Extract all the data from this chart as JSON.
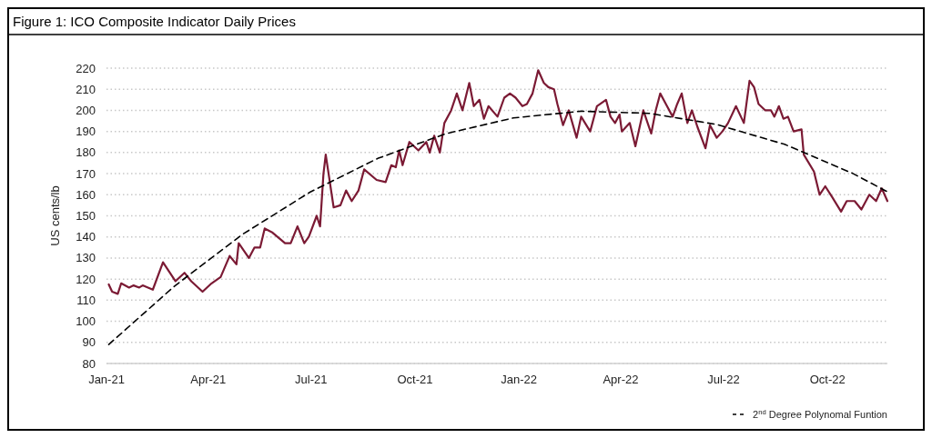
{
  "chart_data": {
    "type": "line",
    "title": "Figure 1: ICO Composite Indicator Daily Prices",
    "ylabel": "US cents/lb",
    "xlim": [
      "2021-01-01",
      "2022-11-23"
    ],
    "xticks": [
      {
        "value": "2021-01-01",
        "label": "Jan-21"
      },
      {
        "value": "2021-04-01",
        "label": "Apr-21"
      },
      {
        "value": "2021-07-01",
        "label": "Jul-21"
      },
      {
        "value": "2021-10-01",
        "label": "Oct-21"
      },
      {
        "value": "2022-01-01",
        "label": "Jan-22"
      },
      {
        "value": "2022-04-01",
        "label": "Apr-22"
      },
      {
        "value": "2022-07-01",
        "label": "Jul-22"
      },
      {
        "value": "2022-10-01",
        "label": "Oct-22"
      }
    ],
    "ylim": [
      80,
      220
    ],
    "yticks": [
      80,
      90,
      100,
      110,
      120,
      130,
      140,
      150,
      160,
      170,
      180,
      190,
      200,
      210,
      220
    ],
    "grid": "y",
    "legend": "bottom right",
    "series": [
      {
        "color": "#7b1a34",
        "line_style": "solid",
        "x": [
          "2021-01-03",
          "2021-01-06",
          "2021-01-11",
          "2021-01-14",
          "2021-01-21",
          "2021-01-25",
          "2021-01-30",
          "2021-02-02",
          "2021-02-11",
          "2021-02-20",
          "2021-03-03",
          "2021-03-11",
          "2021-03-17",
          "2021-03-27",
          "2021-04-04",
          "2021-04-12",
          "2021-04-20",
          "2021-04-26",
          "2021-04-28",
          "2021-05-07",
          "2021-05-12",
          "2021-05-17",
          "2021-05-21",
          "2021-05-28",
          "2021-06-08",
          "2021-06-13",
          "2021-06-19",
          "2021-06-25",
          "2021-06-29",
          "2021-07-06",
          "2021-07-09",
          "2021-07-12",
          "2021-07-14",
          "2021-07-21",
          "2021-07-27",
          "2021-08-01",
          "2021-08-06",
          "2021-08-12",
          "2021-08-17",
          "2021-08-28",
          "2021-09-05",
          "2021-09-10",
          "2021-09-14",
          "2021-09-17",
          "2021-09-20",
          "2021-09-26",
          "2021-10-04",
          "2021-10-11",
          "2021-10-14",
          "2021-10-18",
          "2021-10-23",
          "2021-10-27",
          "2021-11-02",
          "2021-11-07",
          "2021-11-12",
          "2021-11-18",
          "2021-11-22",
          "2021-11-27",
          "2021-12-01",
          "2021-12-05",
          "2021-12-13",
          "2021-12-19",
          "2021-12-24",
          "2021-12-29",
          "2022-01-04",
          "2022-01-08",
          "2022-01-13",
          "2022-01-18",
          "2022-01-23",
          "2022-01-27",
          "2022-02-01",
          "2022-02-04",
          "2022-02-09",
          "2022-02-14",
          "2022-02-21",
          "2022-02-25",
          "2022-03-05",
          "2022-03-11",
          "2022-03-19",
          "2022-03-23",
          "2022-03-27",
          "2022-03-31",
          "2022-04-02",
          "2022-04-09",
          "2022-04-14",
          "2022-04-21",
          "2022-04-28",
          "2022-05-02",
          "2022-05-06",
          "2022-05-11",
          "2022-05-17",
          "2022-05-21",
          "2022-05-25",
          "2022-05-30",
          "2022-06-03",
          "2022-06-08",
          "2022-06-15",
          "2022-06-19",
          "2022-06-25",
          "2022-06-30",
          "2022-07-05",
          "2022-07-12",
          "2022-07-19",
          "2022-07-24",
          "2022-07-28",
          "2022-08-01",
          "2022-08-07",
          "2022-08-12",
          "2022-08-15",
          "2022-08-19",
          "2022-08-23",
          "2022-08-27",
          "2022-09-01",
          "2022-09-08",
          "2022-09-10",
          "2022-09-19",
          "2022-09-24",
          "2022-09-29",
          "2022-10-05",
          "2022-10-13",
          "2022-10-18",
          "2022-10-25",
          "2022-10-31",
          "2022-11-07",
          "2022-11-13",
          "2022-11-18",
          "2022-11-23"
        ],
        "values": [
          117.5,
          114,
          113,
          118,
          116,
          117,
          116,
          117,
          115,
          128,
          119,
          123,
          119,
          114,
          118,
          121,
          131,
          127,
          137,
          130,
          135,
          135,
          144,
          142,
          137,
          137,
          145,
          137,
          140,
          150,
          145,
          170,
          179,
          154,
          155,
          162,
          157,
          162,
          172,
          167,
          166,
          174,
          173,
          181,
          174,
          185,
          181,
          185,
          180,
          188,
          180,
          194,
          200,
          208,
          200,
          213,
          202,
          205,
          196,
          202,
          197,
          206,
          208,
          206,
          202,
          203,
          208,
          219,
          213,
          211,
          210,
          203,
          193,
          200,
          187,
          197,
          190,
          202,
          205,
          197,
          194,
          198,
          190,
          194,
          183,
          200,
          189,
          200,
          208,
          203,
          197,
          203,
          208,
          194,
          200,
          192,
          182,
          193,
          187,
          190,
          194,
          202,
          194,
          214,
          211,
          203,
          200,
          200,
          197,
          202,
          196,
          197,
          190,
          191,
          179,
          171,
          160,
          164,
          159,
          152,
          157,
          157,
          153,
          160,
          157,
          163,
          157
        ]
      },
      {
        "name": "2$^{nd}$ Degree Polynomal Funtion",
        "color": "#000000",
        "line_style": "dashed",
        "x": [
          "2021-01-03",
          "2021-03-02",
          "2021-05-01",
          "2021-06-30",
          "2021-08-29",
          "2021-10-28",
          "2021-12-27",
          "2022-02-25",
          "2022-04-26",
          "2022-06-25",
          "2022-08-24",
          "2022-10-23",
          "2022-11-23"
        ],
        "values": [
          89,
          116.6,
          141.1,
          161.2,
          177.2,
          188.9,
          196.4,
          199.6,
          198.6,
          193.3,
          183.9,
          170.2,
          161.4
        ]
      }
    ]
  }
}
